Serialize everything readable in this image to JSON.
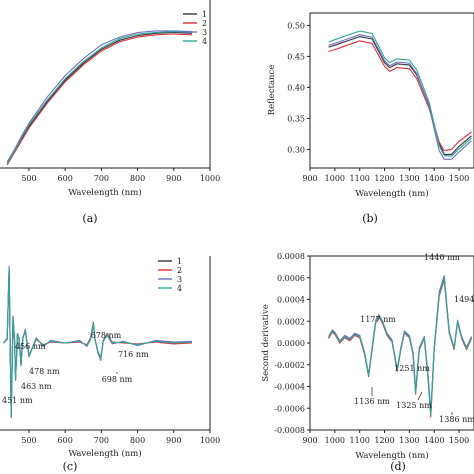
{
  "colors": {
    "s1": "#333333",
    "s2": "#e0303c",
    "s3": "#6e6ec8",
    "s4": "#2aa89a",
    "axis": "#222222"
  },
  "chart_data": [
    {
      "id": "a",
      "panel_label": "(a)",
      "type": "line",
      "xlabel": "Wavelength (nm)",
      "ylabel": "",
      "xlim": [
        420,
        1000
      ],
      "ylim": [
        0.0,
        1.0
      ],
      "xticks": [
        "500",
        "600",
        "700",
        "800",
        "900",
        "1000"
      ],
      "yticks": [],
      "legend": {
        "placement": "top-right",
        "entries": [
          "1",
          "2",
          "3",
          "4"
        ]
      },
      "series": [
        {
          "name": "1",
          "x": [
            440,
            460,
            480,
            500,
            550,
            600,
            650,
            700,
            750,
            800,
            850,
            900,
            950
          ],
          "y": [
            0.03,
            0.11,
            0.19,
            0.27,
            0.43,
            0.57,
            0.68,
            0.77,
            0.83,
            0.86,
            0.875,
            0.88,
            0.875
          ]
        },
        {
          "name": "2",
          "x": [
            440,
            460,
            480,
            500,
            550,
            600,
            650,
            700,
            750,
            800,
            850,
            900,
            950
          ],
          "y": [
            0.02,
            0.1,
            0.18,
            0.26,
            0.42,
            0.56,
            0.67,
            0.76,
            0.82,
            0.85,
            0.865,
            0.87,
            0.865
          ]
        },
        {
          "name": "3",
          "x": [
            440,
            460,
            480,
            500,
            550,
            600,
            650,
            700,
            750,
            800,
            850,
            900,
            950
          ],
          "y": [
            0.04,
            0.12,
            0.21,
            0.29,
            0.46,
            0.6,
            0.71,
            0.8,
            0.85,
            0.88,
            0.89,
            0.89,
            0.885
          ]
        },
        {
          "name": "4",
          "x": [
            440,
            460,
            480,
            500,
            550,
            600,
            650,
            700,
            750,
            800,
            850,
            900,
            950
          ],
          "y": [
            0.03,
            0.11,
            0.2,
            0.28,
            0.44,
            0.58,
            0.69,
            0.78,
            0.84,
            0.87,
            0.88,
            0.885,
            0.88
          ]
        }
      ]
    },
    {
      "id": "b",
      "panel_label": "(b)",
      "type": "line",
      "xlabel": "Wavelength (nm)",
      "ylabel": "Reflectance",
      "xlim": [
        900,
        1560
      ],
      "ylim": [
        0.27,
        0.52
      ],
      "xticks": [
        "900",
        "1000",
        "1100",
        "1200",
        "1300",
        "1400",
        "1500"
      ],
      "yticks": [
        "0.30",
        "0.35",
        "0.40",
        "0.45",
        "0.50"
      ],
      "series": [
        {
          "name": "1",
          "x": [
            975,
            1000,
            1050,
            1100,
            1150,
            1200,
            1220,
            1250,
            1300,
            1330,
            1380,
            1420,
            1440,
            1470,
            1500,
            1550
          ],
          "y": [
            0.465,
            0.468,
            0.475,
            0.482,
            0.478,
            0.44,
            0.432,
            0.438,
            0.436,
            0.42,
            0.37,
            0.31,
            0.292,
            0.292,
            0.305,
            0.322
          ]
        },
        {
          "name": "2",
          "x": [
            975,
            1000,
            1050,
            1100,
            1150,
            1200,
            1220,
            1250,
            1300,
            1330,
            1380,
            1420,
            1440,
            1470,
            1500,
            1550
          ],
          "y": [
            0.458,
            0.461,
            0.468,
            0.475,
            0.471,
            0.434,
            0.426,
            0.432,
            0.43,
            0.414,
            0.365,
            0.312,
            0.298,
            0.3,
            0.313,
            0.328
          ]
        },
        {
          "name": "3",
          "x": [
            975,
            1000,
            1050,
            1100,
            1150,
            1200,
            1220,
            1250,
            1300,
            1330,
            1380,
            1420,
            1440,
            1470,
            1500,
            1550
          ],
          "y": [
            0.468,
            0.471,
            0.478,
            0.485,
            0.481,
            0.443,
            0.435,
            0.441,
            0.439,
            0.422,
            0.368,
            0.298,
            0.284,
            0.284,
            0.296,
            0.314
          ]
        },
        {
          "name": "4",
          "x": [
            975,
            1000,
            1050,
            1100,
            1150,
            1200,
            1220,
            1250,
            1300,
            1330,
            1380,
            1420,
            1440,
            1470,
            1500,
            1550
          ],
          "y": [
            0.473,
            0.477,
            0.484,
            0.491,
            0.487,
            0.448,
            0.44,
            0.446,
            0.444,
            0.428,
            0.375,
            0.306,
            0.29,
            0.289,
            0.301,
            0.318
          ]
        }
      ]
    },
    {
      "id": "c",
      "panel_label": "(c)",
      "type": "line",
      "xlabel": "Wavelength (nm)",
      "ylabel": "",
      "xlim": [
        420,
        1000
      ],
      "ylim": [
        -1.0,
        1.0
      ],
      "xticks": [
        "500",
        "600",
        "700",
        "800",
        "900",
        "1000"
      ],
      "yticks": [],
      "legend": {
        "placement": "top-right",
        "entries": [
          "1",
          "2",
          "3",
          "4"
        ]
      },
      "annotations": [
        "456 nm",
        "478 nm",
        "463 nm",
        "451 nm",
        "678 nm",
        "716 nm",
        "698 nm"
      ],
      "series": [
        {
          "name": "1",
          "x": [
            430,
            440,
            445,
            451,
            456,
            460,
            463,
            468,
            473,
            478,
            483,
            490,
            500,
            520,
            540,
            560,
            600,
            640,
            660,
            670,
            675,
            678,
            682,
            690,
            698,
            705,
            716,
            730,
            760,
            800,
            850,
            900,
            950
          ],
          "y": [
            0,
            0.05,
            0.85,
            -0.85,
            0.3,
            0.05,
            -0.42,
            0.1,
            0.05,
            -0.25,
            0.05,
            0.15,
            -0.15,
            0.05,
            -0.03,
            0.02,
            0,
            0.02,
            -0.03,
            0.05,
            0.15,
            0.22,
            0.05,
            -0.1,
            -0.18,
            0.02,
            0.1,
            0.0,
            0.01,
            -0.02,
            0.02,
            0.0,
            0.01
          ]
        },
        {
          "name": "2",
          "x": [
            430,
            440,
            445,
            451,
            456,
            460,
            463,
            468,
            473,
            478,
            483,
            490,
            500,
            520,
            540,
            560,
            600,
            640,
            660,
            670,
            675,
            678,
            682,
            690,
            698,
            705,
            716,
            730,
            760,
            800,
            850,
            900,
            950
          ],
          "y": [
            0,
            0.06,
            0.83,
            -0.82,
            0.28,
            0.04,
            -0.4,
            0.09,
            0.06,
            -0.23,
            0.06,
            0.13,
            -0.14,
            0.04,
            -0.02,
            0.01,
            0,
            0.01,
            -0.02,
            0.06,
            0.17,
            0.24,
            0.06,
            -0.11,
            -0.2,
            0.03,
            0.11,
            0.01,
            0.0,
            -0.01,
            0.01,
            -0.01,
            0.0
          ]
        },
        {
          "name": "3",
          "x": [
            430,
            440,
            445,
            451,
            456,
            460,
            463,
            468,
            473,
            478,
            483,
            490,
            500,
            520,
            540,
            560,
            600,
            640,
            660,
            670,
            675,
            678,
            682,
            690,
            698,
            705,
            716,
            730,
            760,
            800,
            850,
            900,
            950
          ],
          "y": [
            0,
            0.04,
            0.88,
            -0.86,
            0.31,
            0.06,
            -0.43,
            0.11,
            0.04,
            -0.26,
            0.04,
            0.16,
            -0.16,
            0.06,
            -0.04,
            0.03,
            0,
            0.03,
            -0.04,
            0.04,
            0.14,
            0.21,
            0.04,
            -0.09,
            -0.17,
            0.02,
            0.09,
            -0.01,
            0.02,
            -0.03,
            0.03,
            0.01,
            0.02
          ]
        },
        {
          "name": "4",
          "x": [
            430,
            440,
            445,
            451,
            456,
            460,
            463,
            468,
            473,
            478,
            483,
            490,
            500,
            520,
            540,
            560,
            600,
            640,
            660,
            670,
            675,
            678,
            682,
            690,
            698,
            705,
            716,
            730,
            760,
            800,
            850,
            900,
            950
          ],
          "y": [
            0,
            0.05,
            0.86,
            -0.84,
            0.29,
            0.05,
            -0.41,
            0.1,
            0.05,
            -0.24,
            0.05,
            0.14,
            -0.15,
            0.05,
            -0.03,
            0.02,
            0,
            0.02,
            -0.03,
            0.05,
            0.16,
            0.23,
            0.05,
            -0.1,
            -0.19,
            0.02,
            0.1,
            0.0,
            0.01,
            -0.02,
            0.02,
            0.0,
            0.01
          ]
        }
      ]
    },
    {
      "id": "d",
      "panel_label": "(d)",
      "type": "line",
      "xlabel": "Wavelength (nm)",
      "ylabel": "Second derivative",
      "xlim": [
        900,
        1560
      ],
      "ylim": [
        -0.0008,
        0.0008
      ],
      "xticks": [
        "900",
        "1000",
        "1100",
        "1200",
        "1300",
        "1400",
        "1500"
      ],
      "yticks": [
        "0.0008",
        "0.0006",
        "0.0004",
        "0.0002",
        "0.0000",
        "-0.0002",
        "-0.0004",
        "-0.0006",
        "-0.0008"
      ],
      "annotations": [
        "1177 nm",
        "1440 nm",
        "1494",
        "1136 nm",
        "1251 nm",
        "1325 nm",
        "1386 nm"
      ],
      "series": [
        {
          "name": "1",
          "x": [
            975,
            990,
            1000,
            1020,
            1040,
            1060,
            1080,
            1100,
            1120,
            1136,
            1150,
            1165,
            1177,
            1190,
            1210,
            1230,
            1251,
            1265,
            1280,
            1300,
            1315,
            1325,
            1340,
            1360,
            1375,
            1386,
            1400,
            1420,
            1440,
            1460,
            1480,
            1494,
            1510,
            1530,
            1550
          ],
          "y": [
            5e-05,
            0.00011,
            9e-05,
            1e-05,
            6e-05,
            3e-05,
            8e-05,
            6e-05,
            -0.0001,
            -0.0003,
            -5e-05,
            0.0002,
            0.00025,
            0.0002,
            8e-05,
            2e-05,
            -0.00025,
            -6e-05,
            0.0001,
            6e-05,
            -0.0001,
            -0.00045,
            -5e-05,
            5e-05,
            -0.0003,
            -0.00065,
            -5e-05,
            0.00045,
            0.0006,
            0.0001,
            -5e-05,
            0.0002,
            5e-05,
            -5e-05,
            5e-05
          ]
        },
        {
          "name": "2",
          "x": [
            975,
            990,
            1000,
            1020,
            1040,
            1060,
            1080,
            1100,
            1120,
            1136,
            1150,
            1165,
            1177,
            1190,
            1210,
            1230,
            1251,
            1265,
            1280,
            1300,
            1315,
            1325,
            1340,
            1360,
            1375,
            1386,
            1400,
            1420,
            1440,
            1460,
            1480,
            1494,
            1510,
            1530,
            1550
          ],
          "y": [
            4e-05,
            0.0001,
            8e-05,
            0.0,
            5e-05,
            2e-05,
            7e-05,
            5e-05,
            -0.00011,
            -0.00031,
            -6e-05,
            0.00019,
            0.00024,
            0.00019,
            7e-05,
            1e-05,
            -0.00026,
            -7e-05,
            9e-05,
            5e-05,
            -0.00011,
            -0.00047,
            -6e-05,
            4e-05,
            -0.00032,
            -0.00068,
            -6e-05,
            0.00043,
            0.00058,
            9e-05,
            -6e-05,
            0.00019,
            4e-05,
            -6e-05,
            4e-05
          ]
        },
        {
          "name": "3",
          "x": [
            975,
            990,
            1000,
            1020,
            1040,
            1060,
            1080,
            1100,
            1120,
            1136,
            1150,
            1165,
            1177,
            1190,
            1210,
            1230,
            1251,
            1265,
            1280,
            1300,
            1315,
            1325,
            1340,
            1360,
            1375,
            1386,
            1400,
            1420,
            1440,
            1460,
            1480,
            1494,
            1510,
            1530,
            1550
          ],
          "y": [
            6e-05,
            0.00012,
            0.0001,
            2e-05,
            7e-05,
            4e-05,
            9e-05,
            7e-05,
            -9e-05,
            -0.00029,
            -4e-05,
            0.00021,
            0.00026,
            0.00021,
            9e-05,
            3e-05,
            -0.00024,
            -5e-05,
            0.00011,
            7e-05,
            -9e-05,
            -0.00044,
            -4e-05,
            6e-05,
            -0.00029,
            -0.00063,
            -4e-05,
            0.00047,
            0.00062,
            0.00011,
            -4e-05,
            0.00021,
            6e-05,
            -4e-05,
            6e-05
          ]
        },
        {
          "name": "4",
          "x": [
            975,
            990,
            1000,
            1020,
            1040,
            1060,
            1080,
            1100,
            1120,
            1136,
            1150,
            1165,
            1177,
            1190,
            1210,
            1230,
            1251,
            1265,
            1280,
            1300,
            1315,
            1325,
            1340,
            1360,
            1375,
            1386,
            1400,
            1420,
            1440,
            1460,
            1480,
            1494,
            1510,
            1530,
            1550
          ],
          "y": [
            5e-05,
            0.00011,
            9e-05,
            1e-05,
            6e-05,
            3e-05,
            8e-05,
            6e-05,
            -0.0001,
            -0.0003,
            -5e-05,
            0.0002,
            0.00025,
            0.0002,
            8e-05,
            2e-05,
            -0.00025,
            -6e-05,
            0.0001,
            6e-05,
            -0.0001,
            -0.00046,
            -5e-05,
            5e-05,
            -0.00031,
            -0.00066,
            -5e-05,
            0.00044,
            0.0006,
            0.0001,
            -5e-05,
            0.0002,
            5e-05,
            -5e-05,
            5e-05
          ]
        }
      ]
    }
  ]
}
